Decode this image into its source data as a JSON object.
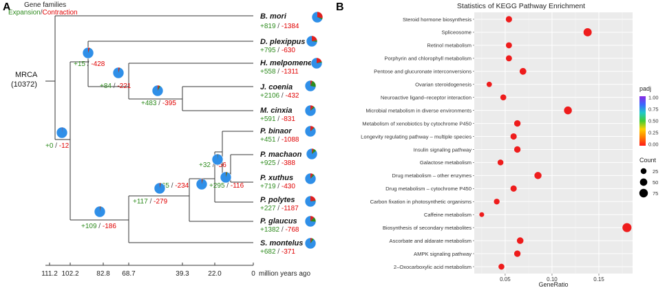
{
  "panel_a": {
    "letter": "A",
    "header": {
      "title": "Gene families",
      "expansion_label": "Expansion",
      "divider": "/",
      "contraction_label": "Contraction"
    },
    "root": {
      "name": "MRCA",
      "count": "(10372)"
    },
    "colors": {
      "gain": "#2e8b1e",
      "loss": "#e00000",
      "pie_main": "#2f8fe8",
      "pie_red": "#e02020",
      "pie_green": "#2e8b1e"
    },
    "species": [
      {
        "name": "B. mori",
        "gain": "+819",
        "loss": "-1384",
        "pie_red": 0.28,
        "pie_green": 0.04
      },
      {
        "name": "D. plexippus",
        "gain": "+795",
        "loss": "-630",
        "pie_red": 0.22,
        "pie_green": 0.05
      },
      {
        "name": "H. melpomene",
        "gain": "+558",
        "loss": "-1311",
        "pie_red": 0.2,
        "pie_green": 0.03
      },
      {
        "name": "J. coenia",
        "gain": "+2106",
        "loss": "-432",
        "pie_red": 0.06,
        "pie_green": 0.22
      },
      {
        "name": "M. cinxia",
        "gain": "+591",
        "loss": "-831",
        "pie_red": 0.1,
        "pie_green": 0.05
      },
      {
        "name": "P. binaor",
        "gain": "+451",
        "loss": "-1088",
        "pie_red": 0.12,
        "pie_green": 0.02
      },
      {
        "name": "P. machaon",
        "gain": "+925",
        "loss": "-388",
        "pie_red": 0.05,
        "pie_green": 0.1
      },
      {
        "name": "P. xuthus",
        "gain": "+719",
        "loss": "-430",
        "pie_red": 0.08,
        "pie_green": 0.05
      },
      {
        "name": "P. polytes",
        "gain": "+227",
        "loss": "-1187",
        "pie_red": 0.22,
        "pie_green": 0.02
      },
      {
        "name": "P. glaucus",
        "gain": "+1382",
        "loss": "-768",
        "pie_red": 0.12,
        "pie_green": 0.14
      },
      {
        "name": "S. montelus",
        "gain": "+682",
        "loss": "-371",
        "pie_red": 0.05,
        "pie_green": 0.06
      }
    ],
    "internal_nodes": [
      {
        "id": "n_root_split",
        "gain": "+0",
        "loss": "-12",
        "pie_red": 0.01,
        "pie_green": 0.0
      },
      {
        "id": "n_dplex",
        "gain": "+15",
        "loss": "-428",
        "pie_red": 0.05,
        "pie_green": 0.01
      },
      {
        "id": "n_heli",
        "gain": "+84",
        "loss": "-221",
        "pie_red": 0.04,
        "pie_green": 0.01
      },
      {
        "id": "n_jcoenia",
        "gain": "+483",
        "loss": "-395",
        "pie_red": 0.05,
        "pie_green": 0.04
      },
      {
        "id": "n_papilio_split",
        "gain": "+109",
        "loss": "-186",
        "pie_red": 0.02,
        "pie_green": 0.01
      },
      {
        "id": "n_pap",
        "gain": "+117",
        "loss": "-279",
        "pie_red": 0.03,
        "pie_green": 0.01
      },
      {
        "id": "n_pap2",
        "gain": "+65",
        "loss": "-234",
        "pie_red": 0.03,
        "pie_green": 0.01
      },
      {
        "id": "n_pap3",
        "gain": "+32",
        "loss": "-56",
        "pie_red": 0.01,
        "pie_green": 0.01
      },
      {
        "id": "n_pap4",
        "gain": "+295",
        "loss": "-116",
        "pie_red": 0.02,
        "pie_green": 0.03
      }
    ],
    "time_axis": {
      "ticks": [
        "111.2",
        "102.2",
        "82.8",
        "68.7",
        "39.3",
        "22.0",
        "0"
      ],
      "unit_label": "million years ago"
    }
  },
  "chart_data": {
    "letter": "B",
    "type": "scatter",
    "title": "Statistics of KEGG Pathway Enrichment",
    "xlabel": "GeneRatio",
    "ylabel": "",
    "xlim": [
      0.017,
      0.186
    ],
    "xticks": [
      0.05,
      0.1,
      0.15
    ],
    "xtick_labels": [
      "0.05",
      "0.10",
      "0.15"
    ],
    "categories": [
      "Steroid hormone biosynthesis",
      "Spliceosome",
      "Retinol metabolism",
      "Porphyrin and chlorophyll metabolism",
      "Pentose and glucuronate interconversions",
      "Ovarian steroidogenesis",
      "Neuroactive ligand–receptor interaction",
      "Microbial metabolism in diverse environments",
      "Metabolism of xenobiotics by cytochrome P450",
      "Longevity regulating pathway – multiple species",
      "Insulin signaling pathway",
      "Galactose metabolism",
      "Drug metabolism – other enzymes",
      "Drug metabolism – cytochrome P450",
      "Carbon fixation in photosynthetic organisms",
      "Caffeine metabolism",
      "Biosynthesis of secondary metabolites",
      "Ascorbate and aldarate metabolism",
      "AMPK signaling pathway",
      "2–Oxocarboxylic acid metabolism"
    ],
    "gene_ratio": [
      0.054,
      0.138,
      0.054,
      0.054,
      0.069,
      0.033,
      0.048,
      0.117,
      0.063,
      0.059,
      0.063,
      0.045,
      0.085,
      0.059,
      0.041,
      0.025,
      0.18,
      0.066,
      0.063,
      0.046
    ],
    "count": [
      20,
      50,
      18,
      18,
      26,
      10,
      16,
      44,
      22,
      20,
      22,
      15,
      32,
      20,
      14,
      6,
      68,
      24,
      22,
      16
    ],
    "padj": [
      0.0,
      0.02,
      0.0,
      0.0,
      0.01,
      0.0,
      0.0,
      0.02,
      0.0,
      0.0,
      0.0,
      0.0,
      0.01,
      0.0,
      0.0,
      0.0,
      0.0,
      0.0,
      0.0,
      0.0
    ],
    "padj_legend": {
      "title": "padj",
      "ticks": [
        "1.00",
        "0.75",
        "0.50",
        "0.25",
        "0.00"
      ],
      "colors": [
        "#8a2be2",
        "#3a66ff",
        "#20c8c8",
        "#44cc33",
        "#ffd000",
        "#ff7a00",
        "#ff1a1a"
      ]
    },
    "count_legend": {
      "title": "Count",
      "values": [
        25,
        50,
        75
      ],
      "labels": [
        "25",
        "50",
        "75"
      ]
    },
    "point_color": "#ee1c1c"
  }
}
